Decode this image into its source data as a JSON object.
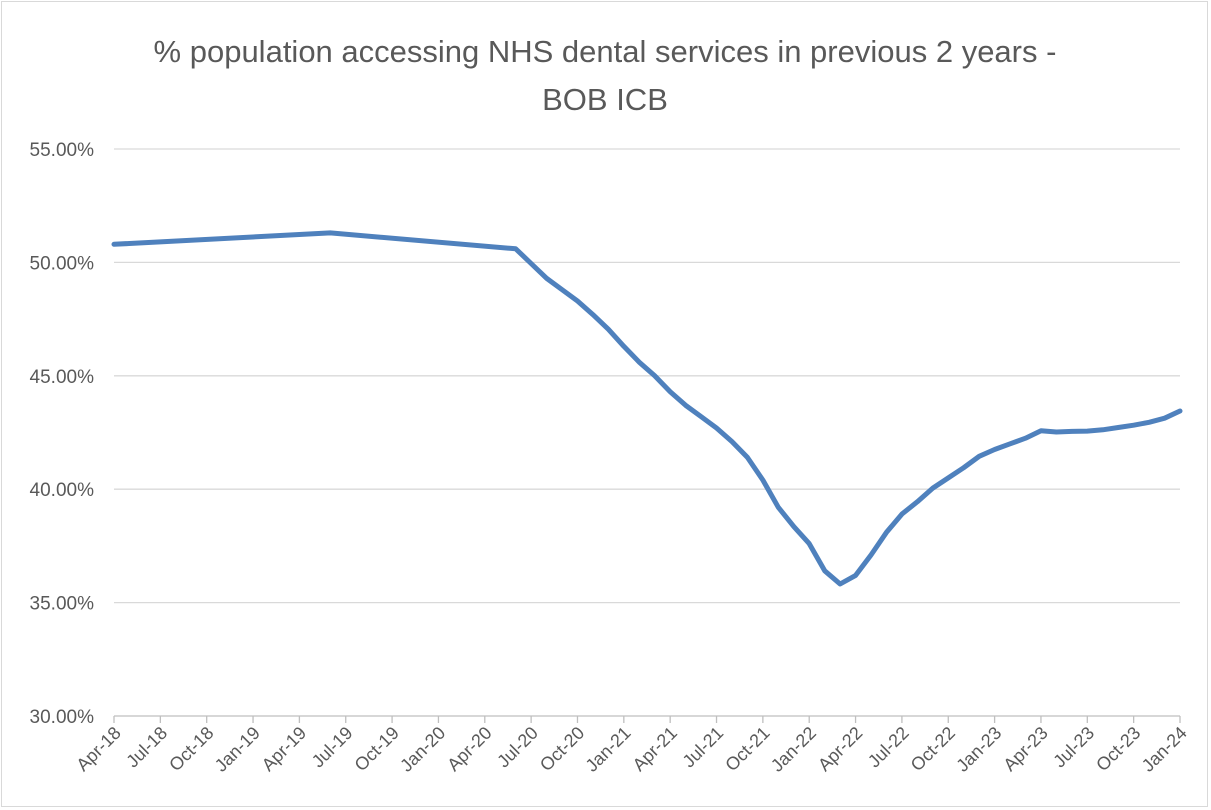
{
  "chart_data": {
    "type": "line",
    "title": "% population accessing NHS dental services in previous 2 years - BOB ICB",
    "xlabel": "",
    "ylabel": "",
    "ylim": [
      0.3,
      0.55
    ],
    "y_ticks": [
      "30.00%",
      "35.00%",
      "40.00%",
      "45.00%",
      "50.00%",
      "55.00%"
    ],
    "x_ticks": [
      "Apr-18",
      "Jul-18",
      "Oct-18",
      "Jan-19",
      "Apr-19",
      "Jul-19",
      "Oct-19",
      "Jan-20",
      "Apr-20",
      "Jul-20",
      "Oct-20",
      "Jan-21",
      "Apr-21",
      "Jul-21",
      "Oct-21",
      "Jan-22",
      "Apr-22",
      "Jul-22",
      "Oct-22",
      "Jan-23",
      "Apr-23",
      "Jul-23",
      "Oct-23",
      "Jan-24"
    ],
    "grid": "horizontal",
    "legend": "none",
    "color": "#4f81bd",
    "series": [
      {
        "x": [
          "2018-04",
          "2019-06",
          "2020-06",
          "2020-07",
          "2020-08",
          "2020-09",
          "2020-10",
          "2020-11",
          "2020-12",
          "2021-01",
          "2021-02",
          "2021-03",
          "2021-04",
          "2021-05",
          "2021-06",
          "2021-07",
          "2021-08",
          "2021-09",
          "2021-10",
          "2021-11",
          "2021-12",
          "2022-01",
          "2022-02",
          "2022-03",
          "2022-04",
          "2022-05",
          "2022-06",
          "2022-07",
          "2022-08",
          "2022-09",
          "2022-10",
          "2022-11",
          "2022-12",
          "2023-01",
          "2023-02",
          "2023-03",
          "2023-04",
          "2023-05",
          "2023-06",
          "2023-07",
          "2023-08",
          "2023-09",
          "2023-10",
          "2023-11",
          "2023-12",
          "2024-01"
        ],
        "values": [
          0.508,
          0.513,
          0.506,
          0.4995,
          0.493,
          0.488,
          0.483,
          0.477,
          0.4705,
          0.463,
          0.456,
          0.45,
          0.443,
          0.437,
          0.432,
          0.427,
          0.421,
          0.414,
          0.404,
          0.392,
          0.3835,
          0.376,
          0.364,
          0.3582,
          0.362,
          0.371,
          0.381,
          0.389,
          0.3945,
          0.4005,
          0.405,
          0.4095,
          0.4145,
          0.4175,
          0.42,
          0.4225,
          0.4258,
          0.4252,
          0.4255,
          0.4256,
          0.4262,
          0.4272,
          0.4282,
          0.4295,
          0.4313,
          0.4345
        ]
      }
    ]
  }
}
